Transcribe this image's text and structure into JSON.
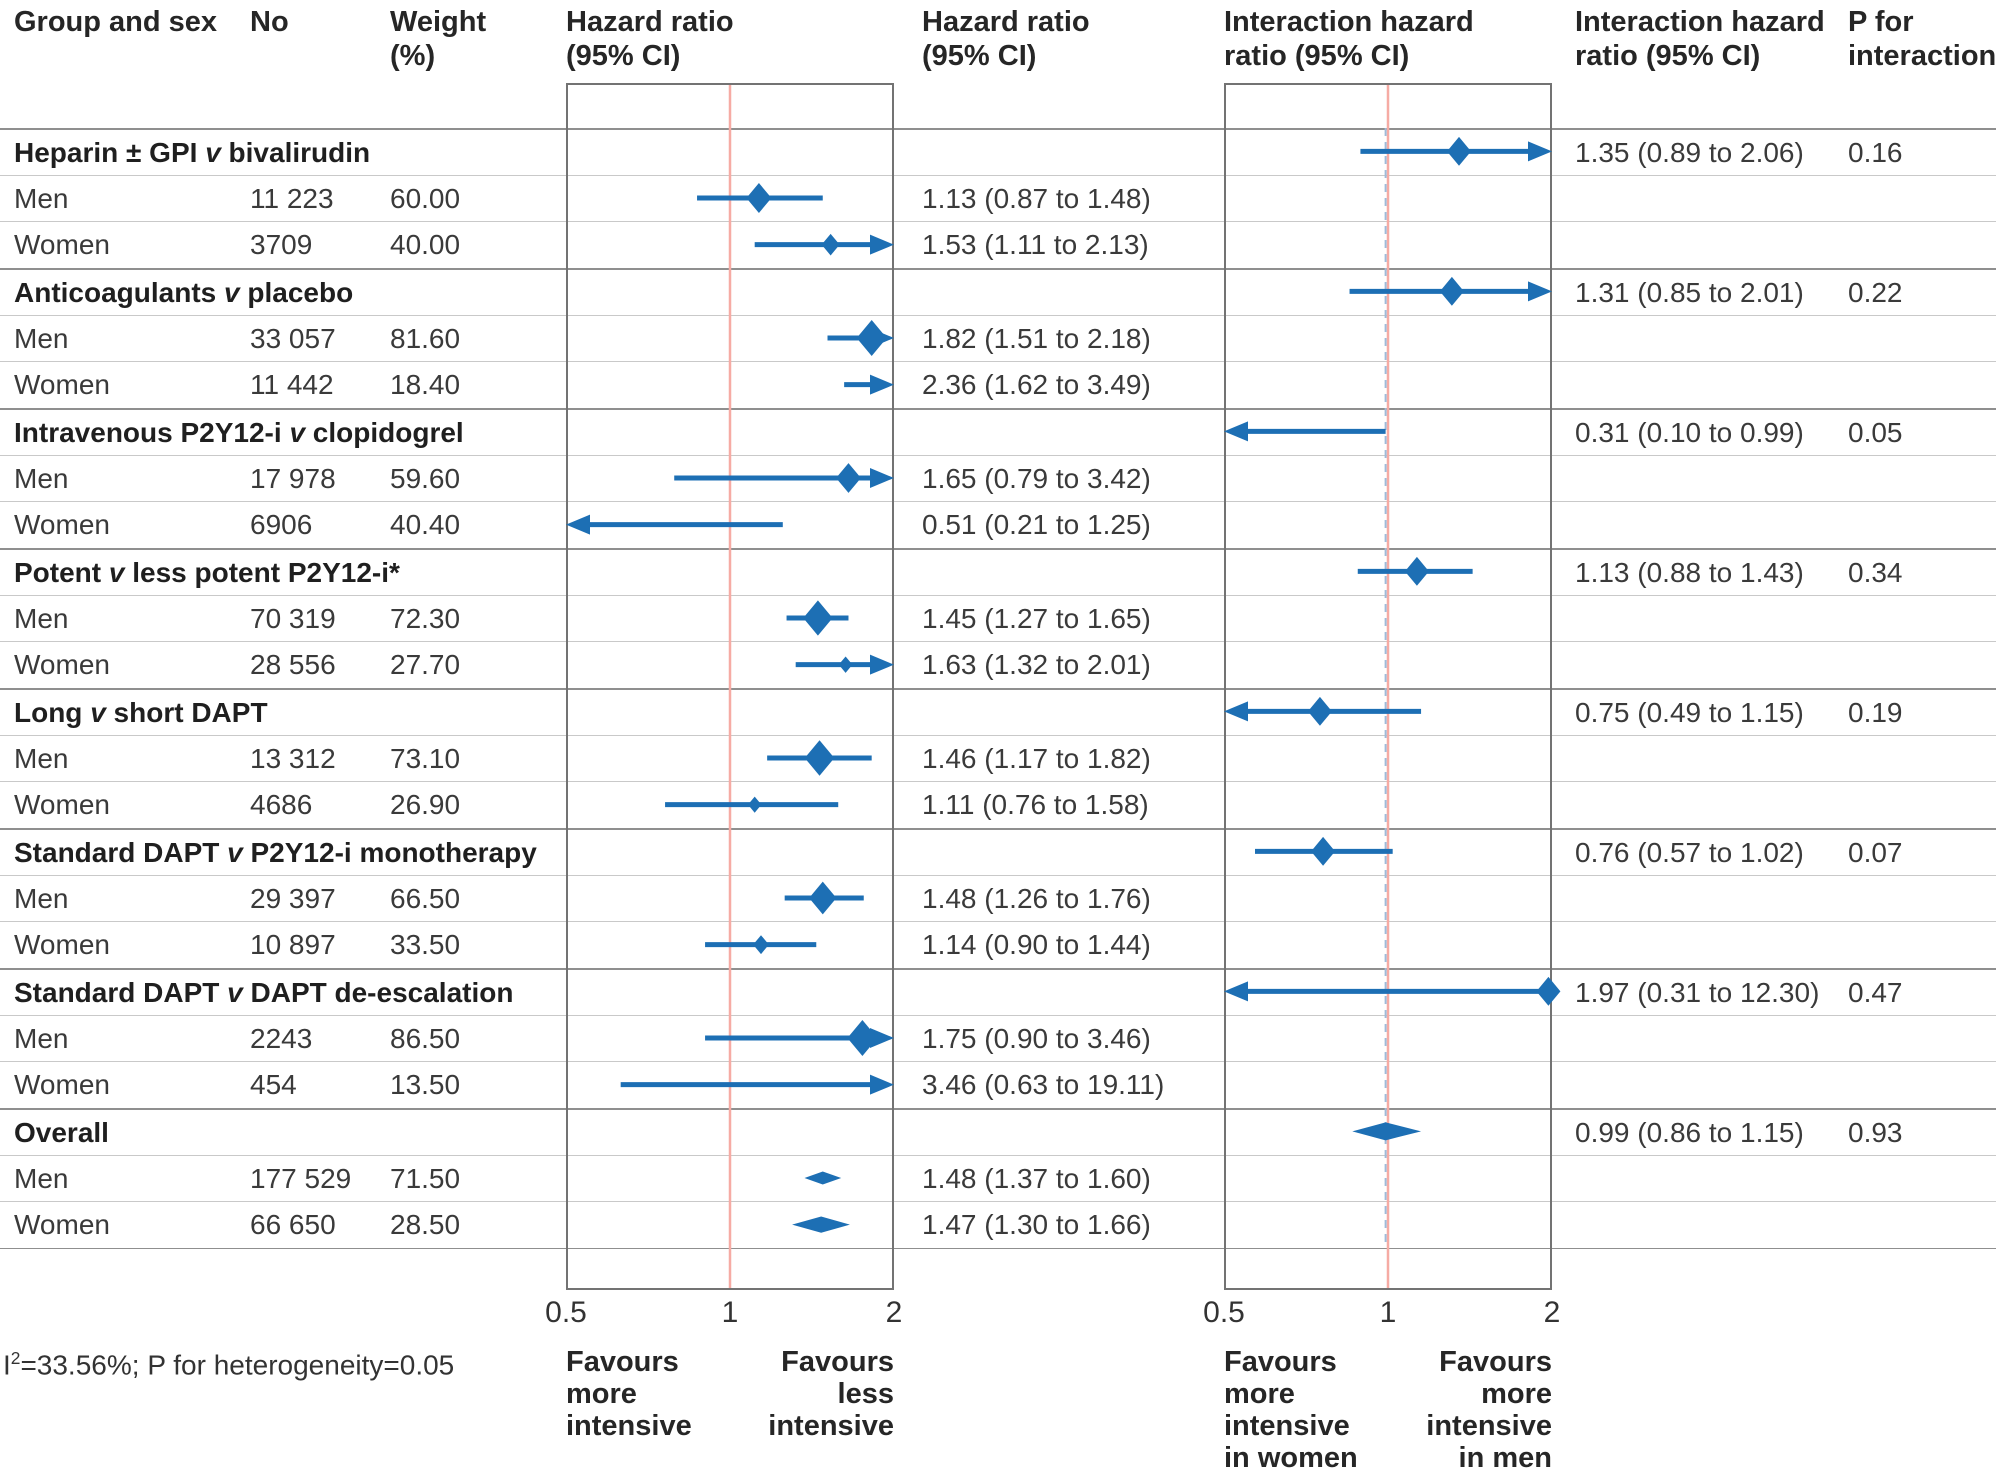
{
  "header": {
    "group_sex": "Group and sex",
    "no": "No",
    "weight": "Weight (%)",
    "hazard_plot": "Hazard ratio (95% CI)",
    "hazard_text": "Hazard ratio (95% CI)",
    "interaction_plot": "Interaction hazard ratio (95% CI)",
    "interaction_text": "Interaction hazard ratio (95% CI)",
    "p": "P for interaction"
  },
  "axes": {
    "ticks": [
      "0.5",
      "1",
      "2"
    ],
    "left_favours_left": "Favours\nmore\nintensive",
    "left_favours_right": "Favours\nless\nintensive",
    "right_favours_left": "Favours\nmore\nintensive\nin women",
    "right_favours_right": "Favours\nmore\nintensive\nin men"
  },
  "footnote": {
    "prefix": "I",
    "sup": "2",
    "rest": "=33.56%; P for heterogeneity=0.05"
  },
  "colors": {
    "marker": "#1d6fb4",
    "ref_line": "#f6aba4",
    "overall_line": "#9fbbd9",
    "box_border": "#737373",
    "row_line": "#c9c9c9",
    "group_line": "#8f8f8f",
    "text": "#333333"
  },
  "chart_data": {
    "type": "forest",
    "x_scale": "log",
    "x_domain": [
      0.5,
      2
    ],
    "x_ticks": [
      0.5,
      1,
      2
    ],
    "reference_line": 1,
    "overall_interaction_line": 0.99,
    "groups": [
      {
        "label": "Heparin ± GPI v bivalirudin",
        "interaction": {
          "est": 1.35,
          "lo": 0.89,
          "hi": 2.06,
          "text": "1.35 (0.89 to 2.06)",
          "p": "0.16"
        },
        "rows": [
          {
            "sex": "Men",
            "n": "11 223",
            "weight": "60.00",
            "est": 1.13,
            "lo": 0.87,
            "hi": 1.48,
            "text": "1.13 (0.87 to 1.48)"
          },
          {
            "sex": "Women",
            "n": "3709",
            "weight": "40.00",
            "est": 1.53,
            "lo": 1.11,
            "hi": 2.13,
            "text": "1.53 (1.11 to 2.13)"
          }
        ]
      },
      {
        "label": "Anticoagulants v placebo",
        "interaction": {
          "est": 1.31,
          "lo": 0.85,
          "hi": 2.01,
          "text": "1.31 (0.85 to 2.01)",
          "p": "0.22"
        },
        "rows": [
          {
            "sex": "Men",
            "n": "33 057",
            "weight": "81.60",
            "est": 1.82,
            "lo": 1.51,
            "hi": 2.18,
            "text": "1.82 (1.51 to 2.18)"
          },
          {
            "sex": "Women",
            "n": "11 442",
            "weight": "18.40",
            "est": 2.36,
            "lo": 1.62,
            "hi": 3.49,
            "text": "2.36 (1.62 to 3.49)",
            "marker": false
          }
        ]
      },
      {
        "label": "Intravenous P2Y12-i v clopidogrel",
        "interaction": {
          "est": 0.31,
          "lo": 0.1,
          "hi": 0.99,
          "text": "0.31 (0.10 to 0.99)",
          "p": "0.05",
          "marker": false
        },
        "rows": [
          {
            "sex": "Men",
            "n": "17 978",
            "weight": "59.60",
            "est": 1.65,
            "lo": 0.79,
            "hi": 3.42,
            "text": "1.65 (0.79 to 3.42)"
          },
          {
            "sex": "Women",
            "n": "6906",
            "weight": "40.40",
            "est": 0.51,
            "lo": 0.21,
            "hi": 1.25,
            "text": "0.51 (0.21 to 1.25)",
            "marker": false
          }
        ]
      },
      {
        "label": "Potent v less potent P2Y12-i*",
        "interaction": {
          "est": 1.13,
          "lo": 0.88,
          "hi": 1.43,
          "text": "1.13 (0.88 to 1.43)",
          "p": "0.34"
        },
        "rows": [
          {
            "sex": "Men",
            "n": "70 319",
            "weight": "72.30",
            "est": 1.45,
            "lo": 1.27,
            "hi": 1.65,
            "text": "1.45 (1.27 to 1.65)"
          },
          {
            "sex": "Women",
            "n": "28 556",
            "weight": "27.70",
            "est": 1.63,
            "lo": 1.32,
            "hi": 2.01,
            "text": "1.63 (1.32 to 2.01)"
          }
        ]
      },
      {
        "label": "Long v short DAPT",
        "interaction": {
          "est": 0.75,
          "lo": 0.49,
          "hi": 1.15,
          "text": "0.75 (0.49 to 1.15)",
          "p": "0.19"
        },
        "rows": [
          {
            "sex": "Men",
            "n": "13 312",
            "weight": "73.10",
            "est": 1.46,
            "lo": 1.17,
            "hi": 1.82,
            "text": "1.46 (1.17 to 1.82)"
          },
          {
            "sex": "Women",
            "n": "4686",
            "weight": "26.90",
            "est": 1.11,
            "lo": 0.76,
            "hi": 1.58,
            "text": "1.11 (0.76 to 1.58)"
          }
        ]
      },
      {
        "label": "Standard DAPT v P2Y12-i monotherapy",
        "interaction": {
          "est": 0.76,
          "lo": 0.57,
          "hi": 1.02,
          "text": "0.76 (0.57 to 1.02)",
          "p": "0.07"
        },
        "rows": [
          {
            "sex": "Men",
            "n": "29 397",
            "weight": "66.50",
            "est": 1.48,
            "lo": 1.26,
            "hi": 1.76,
            "text": "1.48 (1.26 to 1.76)"
          },
          {
            "sex": "Women",
            "n": "10 897",
            "weight": "33.50",
            "est": 1.14,
            "lo": 0.9,
            "hi": 1.44,
            "text": "1.14 (0.90 to 1.44)"
          }
        ]
      },
      {
        "label": "Standard DAPT v DAPT de-escalation",
        "interaction": {
          "est": 1.97,
          "lo": 0.31,
          "hi": 12.3,
          "text": "1.97 (0.31 to 12.30)",
          "p": "0.47"
        },
        "rows": [
          {
            "sex": "Men",
            "n": "2243",
            "weight": "86.50",
            "est": 1.75,
            "lo": 0.9,
            "hi": 3.46,
            "text": "1.75 (0.90 to 3.46)"
          },
          {
            "sex": "Women",
            "n": "454",
            "weight": "13.50",
            "est": 3.46,
            "lo": 0.63,
            "hi": 19.11,
            "text": "3.46 (0.63 to 19.11)",
            "marker": false
          }
        ]
      },
      {
        "label": "Overall",
        "interaction": {
          "est": 0.99,
          "lo": 0.86,
          "hi": 1.15,
          "text": "0.99 (0.86 to 1.15)",
          "p": "0.93",
          "pooled": true
        },
        "rows": [
          {
            "sex": "Men",
            "n": "177 529",
            "weight": "71.50",
            "est": 1.48,
            "lo": 1.37,
            "hi": 1.6,
            "text": "1.48 (1.37 to 1.60)",
            "pooled": true
          },
          {
            "sex": "Women",
            "n": "66 650",
            "weight": "28.50",
            "est": 1.47,
            "lo": 1.3,
            "hi": 1.66,
            "text": "1.47 (1.30 to 1.66)",
            "pooled": true
          }
        ]
      }
    ]
  }
}
